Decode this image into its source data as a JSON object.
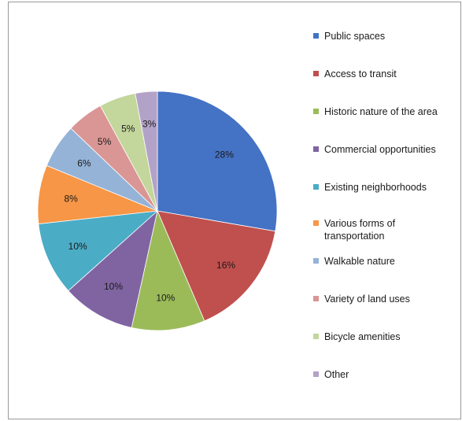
{
  "chart_data": {
    "type": "pie",
    "title": "",
    "legend_position": "right",
    "slices": [
      {
        "label": "Public spaces",
        "value": 28,
        "display": "28%",
        "color": "#4472C4"
      },
      {
        "label": "Access to transit",
        "value": 16,
        "display": "16%",
        "color": "#C0504D"
      },
      {
        "label": "Historic nature of the area",
        "value": 10,
        "display": "10%",
        "color": "#9BBB59"
      },
      {
        "label": "Commercial opportunities",
        "value": 10,
        "display": "10%",
        "color": "#8064A2"
      },
      {
        "label": "Existing neighborhoods",
        "value": 10,
        "display": "10%",
        "color": "#4BACC6"
      },
      {
        "label": "Various forms of transportation",
        "value": 8,
        "display": "8%",
        "color": "#F79646"
      },
      {
        "label": "Walkable nature",
        "value": 6,
        "display": "6%",
        "color": "#95B3D7"
      },
      {
        "label": "Variety of land uses",
        "value": 5,
        "display": "5%",
        "color": "#D99694"
      },
      {
        "label": "Bicycle amenities",
        "value": 5,
        "display": "5%",
        "color": "#C3D69B"
      },
      {
        "label": "Other",
        "value": 3,
        "display": "3%",
        "color": "#B3A2C7"
      }
    ]
  }
}
